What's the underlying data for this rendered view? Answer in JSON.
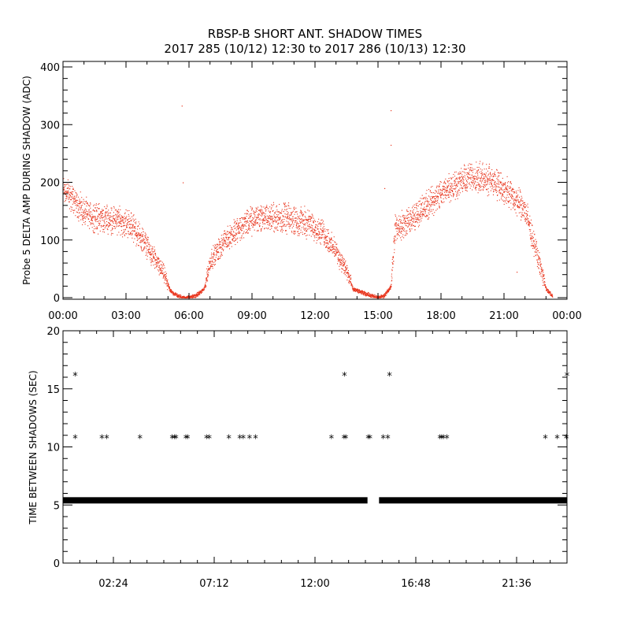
{
  "title": {
    "line1": "RBSP-B SHORT ANT. SHADOW TIMES",
    "line2": "2017 285 (10/12) 12:30 to 2017 286 (10/13) 12:30"
  },
  "colors": {
    "amp_points": "#e8341c",
    "star_points": "#000000",
    "axes": "#000000"
  },
  "chart_data": [
    {
      "type": "scatter",
      "ylabel": "Probe 5 DELTA AMP DURING SHADOW (ADC)",
      "x_unit": "hours",
      "xlim": [
        0,
        24
      ],
      "ylim": [
        0,
        400
      ],
      "x_ticks": [
        "00:00",
        "03:00",
        "06:00",
        "09:00",
        "12:00",
        "15:00",
        "18:00",
        "21:00",
        "00:00"
      ],
      "y_ticks": [
        "0",
        "100",
        "200",
        "300",
        "400"
      ],
      "grid": false,
      "envelope": [
        {
          "x": 0.0,
          "y": 190
        },
        {
          "x": 0.5,
          "y": 170
        },
        {
          "x": 1.0,
          "y": 148
        },
        {
          "x": 1.5,
          "y": 140
        },
        {
          "x": 2.5,
          "y": 135
        },
        {
          "x": 3.2,
          "y": 128
        },
        {
          "x": 3.8,
          "y": 100
        },
        {
          "x": 4.3,
          "y": 70
        },
        {
          "x": 4.75,
          "y": 45
        },
        {
          "x": 5.1,
          "y": 12
        },
        {
          "x": 5.4,
          "y": 5
        },
        {
          "x": 5.7,
          "y": 0
        },
        {
          "x": 6.0,
          "y": 1
        },
        {
          "x": 6.3,
          "y": 4
        },
        {
          "x": 6.7,
          "y": 15
        },
        {
          "x": 7.0,
          "y": 65
        },
        {
          "x": 7.7,
          "y": 100
        },
        {
          "x": 8.5,
          "y": 125
        },
        {
          "x": 9.3,
          "y": 140
        },
        {
          "x": 10.5,
          "y": 138
        },
        {
          "x": 11.5,
          "y": 132
        },
        {
          "x": 12.3,
          "y": 115
        },
        {
          "x": 13.0,
          "y": 80
        },
        {
          "x": 13.5,
          "y": 45
        },
        {
          "x": 13.8,
          "y": 15
        },
        {
          "x": 14.6,
          "y": 5
        },
        {
          "x": 15.0,
          "y": 0
        },
        {
          "x": 15.3,
          "y": 5
        },
        {
          "x": 15.6,
          "y": 20
        },
        {
          "x": 15.8,
          "y": 120
        },
        {
          "x": 16.5,
          "y": 135
        },
        {
          "x": 17.3,
          "y": 160
        },
        {
          "x": 18.3,
          "y": 190
        },
        {
          "x": 19.3,
          "y": 210
        },
        {
          "x": 20.3,
          "y": 205
        },
        {
          "x": 21.3,
          "y": 180
        },
        {
          "x": 22.0,
          "y": 150
        },
        {
          "x": 22.6,
          "y": 70
        },
        {
          "x": 23.0,
          "y": 15
        },
        {
          "x": 23.3,
          "y": 3
        }
      ],
      "scatter_band_adc": 30,
      "outliers": [
        {
          "x": 5.65,
          "y": 333
        },
        {
          "x": 5.7,
          "y": 200
        },
        {
          "x": 15.6,
          "y": 325
        },
        {
          "x": 15.6,
          "y": 265
        },
        {
          "x": 15.3,
          "y": 190
        },
        {
          "x": 21.6,
          "y": 45
        }
      ]
    },
    {
      "type": "scatter",
      "ylabel": "TIME BETWEEN SHADOWS (SEC)",
      "x_unit": "minutes",
      "xlim": [
        0,
        1440
      ],
      "ylim": [
        0,
        20
      ],
      "x_ticks": [
        {
          "value": 144,
          "label": "02:24"
        },
        {
          "value": 432,
          "label": "07:12"
        },
        {
          "value": 720,
          "label": "12:00"
        },
        {
          "value": 1008,
          "label": "16:48"
        },
        {
          "value": 1296,
          "label": "21:36"
        }
      ],
      "y_ticks": [
        "0",
        "5",
        "10",
        "15",
        "20"
      ],
      "grid": false,
      "baseline": {
        "y": 5.4,
        "x_start": 0,
        "x_end": 870,
        "gap_start": 870,
        "gap_end": 903,
        "x_resume": 903,
        "x_final": 1440
      },
      "points_10_8": [
        35,
        111,
        125,
        220,
        312,
        318,
        323,
        351,
        356,
        410,
        418,
        474,
        505,
        515,
        533,
        550,
        767,
        803,
        808,
        872,
        877,
        915,
        928,
        1077,
        1082,
        1087,
        1097,
        1378,
        1412,
        1438
      ],
      "points_16_2": [
        35,
        804,
        933,
        1440
      ],
      "points_5_4_extra": [
        335,
        1430
      ]
    }
  ]
}
